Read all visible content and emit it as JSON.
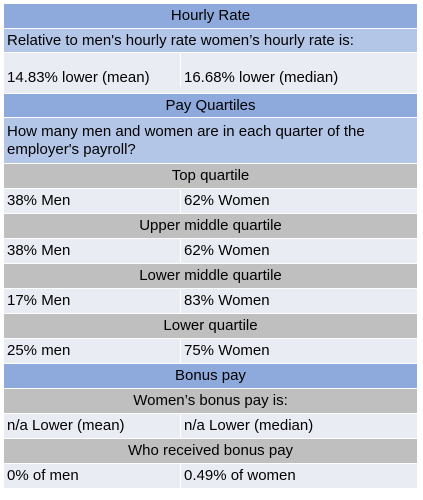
{
  "hourly_rate": {
    "title": "Hourly Rate",
    "question": "Relative to men's hourly rate women’s hourly rate is:",
    "mean": "14.83% lower (mean)",
    "median": "16.68% lower (median)"
  },
  "pay_quartiles": {
    "title": "Pay Quartiles",
    "question": "How many men and women are in each quarter of the employer's payroll?",
    "quartiles": [
      {
        "label": "Top quartile",
        "men": "38% Men",
        "women": "62% Women"
      },
      {
        "label": "Upper middle quartile",
        "men": "38% Men",
        "women": "62% Women"
      },
      {
        "label": "Lower middle quartile",
        "men": "17% Men",
        "women": "83% Women"
      },
      {
        "label": "Lower quartile",
        "men": "25% men",
        "women": "75% Women"
      }
    ]
  },
  "bonus_pay": {
    "title": "Bonus pay",
    "question": "Women’s bonus pay is:",
    "mean": "n/a Lower (mean)",
    "median": "n/a Lower (median)",
    "received_label": "Who received bonus pay",
    "men": "0% of men",
    "women": "0.49% of women"
  },
  "colors": {
    "header_blue": "#8ea9db",
    "subheader_blue": "#b4c6e7",
    "header_gray": "#bfbfbf",
    "data_row": "#e9ecf3"
  }
}
